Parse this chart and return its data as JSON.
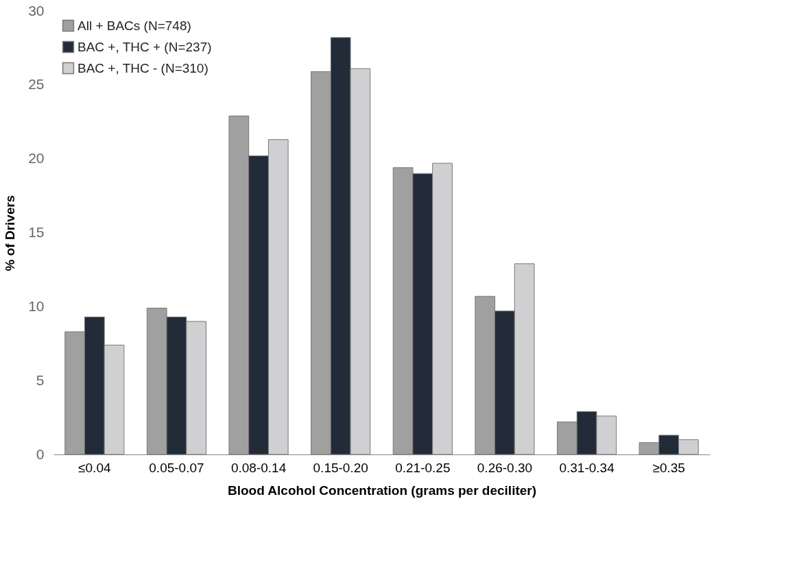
{
  "chart_data": {
    "type": "bar",
    "xlabel": "Blood Alcohol Concentration (grams per deciliter)",
    "ylabel": "% of Drivers",
    "categories": [
      "≤0.04",
      "0.05-0.07",
      "0.08-0.14",
      "0.15-0.20",
      "0.21-0.25",
      "0.26-0.30",
      "0.31-0.34",
      "≥0.35"
    ],
    "series": [
      {
        "name": "All + BACs (N=748)",
        "color": "#a0a0a0",
        "values": [
          8.3,
          9.9,
          22.9,
          25.9,
          19.4,
          10.7,
          2.2,
          0.8
        ]
      },
      {
        "name": "BAC +, THC + (N=237)",
        "color": "#222b38",
        "values": [
          9.3,
          9.3,
          20.2,
          28.2,
          19.0,
          9.7,
          2.9,
          1.3
        ]
      },
      {
        "name": "BAC +, THC - (N=310)",
        "color": "#d0d0d2",
        "values": [
          7.4,
          9.0,
          21.3,
          26.1,
          19.7,
          12.9,
          2.6,
          1.0
        ]
      }
    ],
    "ylim": [
      0,
      30
    ],
    "yticks": [
      0,
      5,
      10,
      15,
      20,
      25,
      30
    ],
    "grid": false,
    "legend": "top left"
  }
}
